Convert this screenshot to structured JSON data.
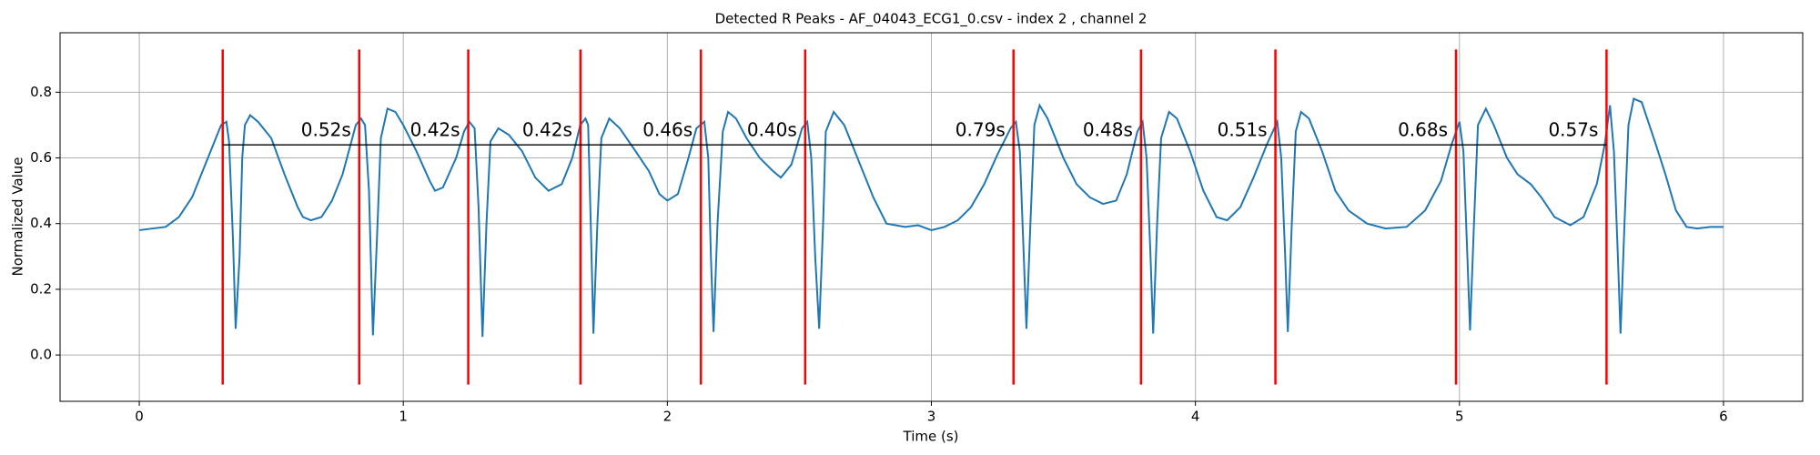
{
  "chart_data": {
    "type": "line",
    "title": "Detected R Peaks - AF_04043_ECG1_0.csv - index 2 , channel 2",
    "xlabel": "Time (s)",
    "ylabel": "Normalized Value",
    "xlim": [
      -0.3,
      6.3
    ],
    "ylim": [
      -0.141,
      0.981
    ],
    "xticks": [
      0,
      1,
      2,
      3,
      4,
      5,
      6
    ],
    "yticks": [
      {
        "value": 0,
        "label": "0.0"
      },
      0.2,
      0.4,
      0.6,
      0.8
    ],
    "grid": true,
    "x": [
      0,
      0.1,
      0.15,
      0.2,
      0.25,
      0.29,
      0.31,
      0.33,
      0.34,
      0.355,
      0.365,
      0.38,
      0.39,
      0.4,
      0.42,
      0.45,
      0.5,
      0.55,
      0.6,
      0.62,
      0.65,
      0.69,
      0.73,
      0.77,
      0.8,
      0.82,
      0.84,
      0.855,
      0.87,
      0.885,
      0.9,
      0.915,
      0.94,
      0.97,
      1.0,
      1.05,
      1.1,
      1.12,
      1.15,
      1.2,
      1.23,
      1.25,
      1.27,
      1.285,
      1.3,
      1.315,
      1.33,
      1.36,
      1.4,
      1.45,
      1.5,
      1.55,
      1.6,
      1.64,
      1.67,
      1.69,
      1.7,
      1.71,
      1.72,
      1.735,
      1.75,
      1.78,
      1.82,
      1.88,
      1.93,
      1.97,
      2.0,
      2.04,
      2.08,
      2.11,
      2.14,
      2.155,
      2.165,
      2.175,
      2.19,
      2.21,
      2.23,
      2.26,
      2.3,
      2.35,
      2.4,
      2.43,
      2.47,
      2.51,
      2.53,
      2.545,
      2.56,
      2.575,
      2.59,
      2.6,
      2.63,
      2.67,
      2.72,
      2.78,
      2.83,
      2.9,
      2.95,
      3.0,
      3.05,
      3.1,
      3.15,
      3.2,
      3.25,
      3.3,
      3.32,
      3.335,
      3.35,
      3.36,
      3.375,
      3.39,
      3.41,
      3.44,
      3.5,
      3.55,
      3.6,
      3.65,
      3.7,
      3.74,
      3.78,
      3.8,
      3.815,
      3.83,
      3.84,
      3.855,
      3.87,
      3.9,
      3.93,
      3.98,
      4.03,
      4.08,
      4.12,
      4.17,
      4.22,
      4.27,
      4.31,
      4.325,
      4.34,
      4.35,
      4.365,
      4.38,
      4.4,
      4.43,
      4.48,
      4.53,
      4.58,
      4.65,
      4.72,
      4.8,
      4.87,
      4.93,
      4.97,
      5.0,
      5.015,
      5.03,
      5.04,
      5.055,
      5.07,
      5.1,
      5.13,
      5.18,
      5.22,
      5.27,
      5.31,
      5.36,
      5.42,
      5.47,
      5.52,
      5.55,
      5.57,
      5.585,
      5.6,
      5.61,
      5.625,
      5.64,
      5.66,
      5.69,
      5.74,
      5.78,
      5.82,
      5.86,
      5.9,
      5.95,
      6.0
    ],
    "series": [
      {
        "color": "#1f77b4",
        "values": [
          0.38,
          0.39,
          0.42,
          0.48,
          0.58,
          0.66,
          0.7,
          0.71,
          0.65,
          0.35,
          0.08,
          0.3,
          0.6,
          0.7,
          0.73,
          0.71,
          0.66,
          0.55,
          0.45,
          0.42,
          0.41,
          0.42,
          0.47,
          0.55,
          0.64,
          0.7,
          0.72,
          0.7,
          0.5,
          0.06,
          0.35,
          0.66,
          0.75,
          0.74,
          0.7,
          0.62,
          0.53,
          0.5,
          0.51,
          0.6,
          0.68,
          0.71,
          0.69,
          0.45,
          0.055,
          0.4,
          0.65,
          0.69,
          0.67,
          0.62,
          0.54,
          0.5,
          0.52,
          0.6,
          0.7,
          0.72,
          0.7,
          0.4,
          0.065,
          0.4,
          0.66,
          0.72,
          0.69,
          0.62,
          0.56,
          0.49,
          0.47,
          0.49,
          0.6,
          0.69,
          0.71,
          0.6,
          0.3,
          0.07,
          0.4,
          0.68,
          0.74,
          0.72,
          0.66,
          0.6,
          0.56,
          0.54,
          0.58,
          0.69,
          0.71,
          0.6,
          0.3,
          0.08,
          0.4,
          0.68,
          0.74,
          0.7,
          0.6,
          0.48,
          0.4,
          0.39,
          0.395,
          0.38,
          0.39,
          0.41,
          0.45,
          0.52,
          0.61,
          0.69,
          0.71,
          0.62,
          0.3,
          0.08,
          0.4,
          0.7,
          0.76,
          0.72,
          0.6,
          0.52,
          0.48,
          0.46,
          0.47,
          0.55,
          0.68,
          0.71,
          0.6,
          0.3,
          0.065,
          0.4,
          0.66,
          0.74,
          0.72,
          0.62,
          0.5,
          0.42,
          0.41,
          0.45,
          0.54,
          0.64,
          0.71,
          0.6,
          0.3,
          0.07,
          0.4,
          0.68,
          0.74,
          0.72,
          0.62,
          0.5,
          0.44,
          0.4,
          0.385,
          0.39,
          0.44,
          0.53,
          0.64,
          0.71,
          0.62,
          0.3,
          0.075,
          0.4,
          0.7,
          0.75,
          0.7,
          0.6,
          0.55,
          0.52,
          0.48,
          0.42,
          0.395,
          0.42,
          0.52,
          0.64,
          0.76,
          0.62,
          0.3,
          0.065,
          0.4,
          0.7,
          0.78,
          0.77,
          0.65,
          0.55,
          0.44,
          0.39,
          0.385,
          0.39,
          0.39
        ]
      }
    ],
    "peaks": [
      0.316,
      0.833,
      1.246,
      1.671,
      2.127,
      2.522,
      3.311,
      3.794,
      4.303,
      4.987,
      5.557
    ],
    "peak_color": "red",
    "interval_line_y": 0.64,
    "intervals": {
      "values": [
        0.52,
        0.42,
        0.42,
        0.46,
        0.4,
        0.79,
        0.48,
        0.51,
        0.68,
        0.57
      ],
      "value_labels": [
        "0.52s",
        "0.42s",
        "0.42s",
        "0.46s",
        "0.40s",
        "0.79s",
        "0.48s",
        "0.51s",
        "0.68s",
        "0.57s"
      ]
    }
  }
}
